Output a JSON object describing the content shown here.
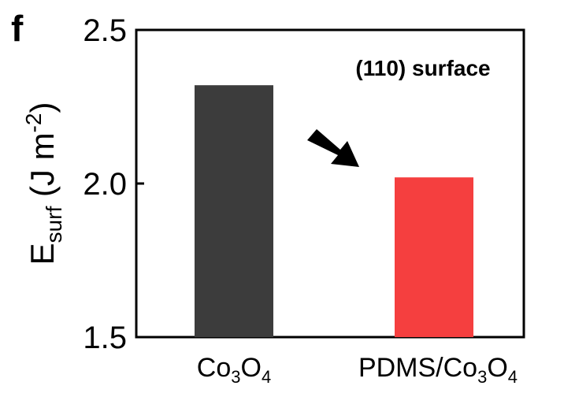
{
  "panel_label": "f",
  "chart_data": {
    "type": "bar",
    "title": "(110) surface",
    "categories": [
      {
        "base": "Co",
        "sub1": "3",
        "mid": "O",
        "sub2": "4"
      },
      {
        "base": "PDMS/Co",
        "sub1": "3",
        "mid": "O",
        "sub2": "4"
      }
    ],
    "values": [
      2.32,
      2.02
    ],
    "bar_colors": [
      "#3c3c3c",
      "#f53f3f"
    ],
    "ylabel": {
      "main": "E",
      "sub": "surf",
      "unit_open": " (J m",
      "sup": "-2",
      "unit_close": ")"
    },
    "yticks": [
      "1.5",
      "2.0",
      "2.5"
    ],
    "ylim": [
      1.5,
      2.5
    ],
    "annotation": "arrow pointing down-right from first bar toward second bar",
    "grid": false,
    "legend": "none"
  }
}
